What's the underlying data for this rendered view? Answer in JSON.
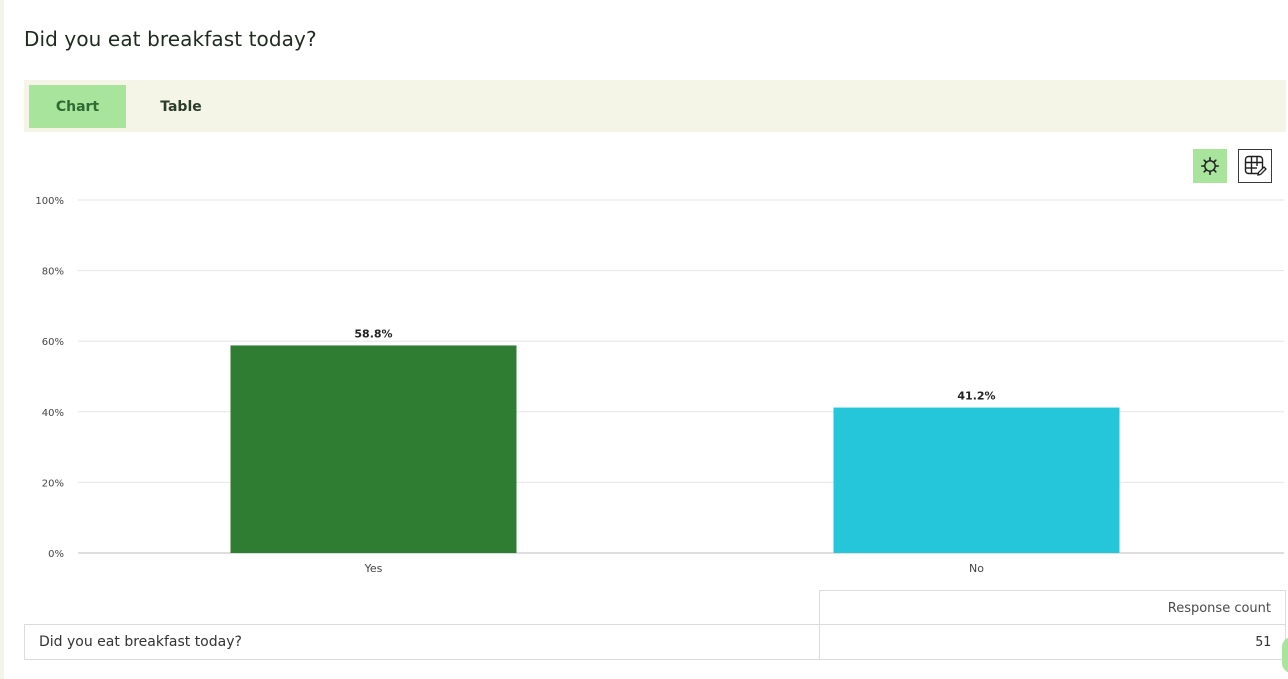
{
  "question": {
    "title": "Did you eat breakfast today?"
  },
  "tabs": [
    {
      "label": "Chart",
      "active": true
    },
    {
      "label": "Table",
      "active": false
    }
  ],
  "toolbar": {
    "settings_icon": "gear-icon",
    "table_edit_icon": "table-edit-icon"
  },
  "colors": {
    "accent": "#a8e49c",
    "bar_yes": "#2e7d32",
    "bar_no": "#26c6da"
  },
  "chart_data": {
    "type": "bar",
    "categories": [
      "Yes",
      "No"
    ],
    "values": [
      58.8,
      41.2
    ],
    "value_labels": [
      "58.8%",
      "41.2%"
    ],
    "bar_colors": [
      "#2e7d32",
      "#26c6da"
    ],
    "ylim": [
      0,
      100
    ],
    "yticks": [
      0,
      20,
      40,
      60,
      80,
      100
    ],
    "ytick_labels": [
      "0%",
      "20%",
      "40%",
      "60%",
      "80%",
      "100%"
    ],
    "grid": true,
    "legend": "none"
  },
  "summary_table": {
    "header": "Response count",
    "rows": [
      {
        "label": "Did you eat breakfast today?",
        "value": "51"
      }
    ]
  }
}
